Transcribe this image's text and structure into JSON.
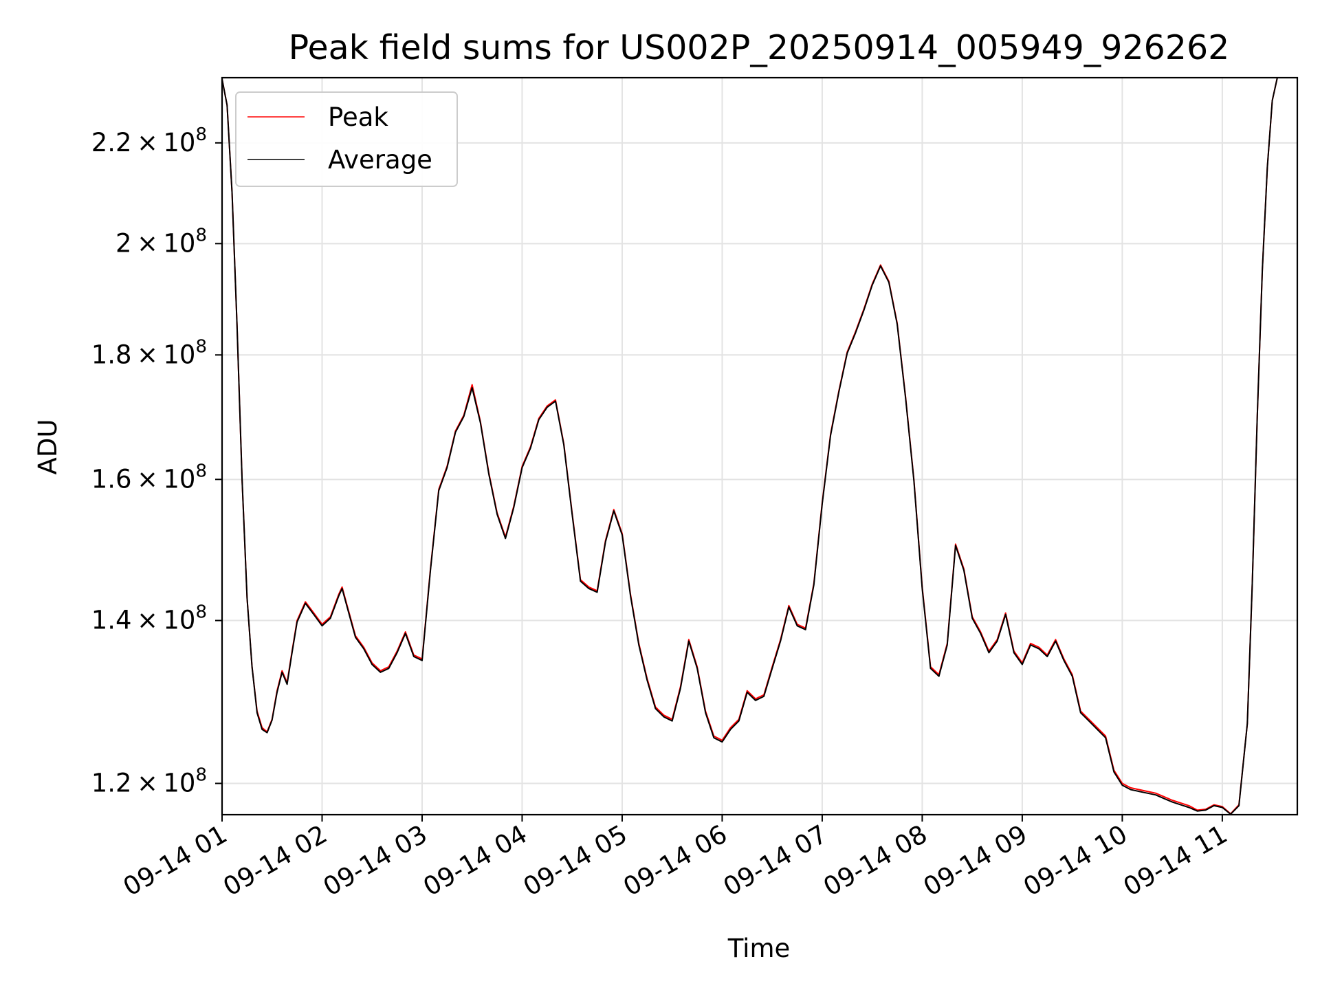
{
  "chart_data": {
    "type": "line",
    "title": "Peak field sums for US002P_20250914_005949_926262",
    "xlabel": "Time",
    "ylabel": "ADU",
    "y_scale": "log",
    "xlim": [
      "2025-09-14 01:00",
      "2025-09-14 11:45"
    ],
    "ylim": [
      116500000,
      234000000
    ],
    "grid": true,
    "legend_position": "upper-left",
    "x_ticks": [
      {
        "value": "2025-09-14 01:00",
        "label": "09-14 01"
      },
      {
        "value": "2025-09-14 02:00",
        "label": "09-14 02"
      },
      {
        "value": "2025-09-14 03:00",
        "label": "09-14 03"
      },
      {
        "value": "2025-09-14 04:00",
        "label": "09-14 04"
      },
      {
        "value": "2025-09-14 05:00",
        "label": "09-14 05"
      },
      {
        "value": "2025-09-14 06:00",
        "label": "09-14 06"
      },
      {
        "value": "2025-09-14 07:00",
        "label": "09-14 07"
      },
      {
        "value": "2025-09-14 08:00",
        "label": "09-14 08"
      },
      {
        "value": "2025-09-14 09:00",
        "label": "09-14 09"
      },
      {
        "value": "2025-09-14 10:00",
        "label": "09-14 10"
      },
      {
        "value": "2025-09-14 11:00",
        "label": "09-14 11"
      }
    ],
    "y_ticks": [
      {
        "value": 120000000,
        "mantissa": "1.2",
        "base": "10",
        "exponent": "8"
      },
      {
        "value": 140000000,
        "mantissa": "1.4",
        "base": "10",
        "exponent": "8"
      },
      {
        "value": 160000000,
        "mantissa": "1.6",
        "base": "10",
        "exponent": "8"
      },
      {
        "value": 180000000,
        "mantissa": "1.8",
        "base": "10",
        "exponent": "8"
      },
      {
        "value": 200000000,
        "mantissa": "2",
        "base": "10",
        "exponent": "8"
      },
      {
        "value": 220000000,
        "mantissa": "2.2",
        "base": "10",
        "exponent": "8"
      }
    ],
    "x": [
      "00:59:49",
      "01:03",
      "01:06",
      "01:09",
      "01:12",
      "01:15",
      "01:18",
      "01:21",
      "01:24",
      "01:27",
      "01:30",
      "01:33",
      "01:36",
      "01:39",
      "01:42",
      "01:45",
      "01:50",
      "01:55",
      "02:00",
      "02:05",
      "02:10",
      "02:12",
      "02:15",
      "02:20",
      "02:25",
      "02:30",
      "02:35",
      "02:40",
      "02:45",
      "02:50",
      "02:55",
      "03:00",
      "03:05",
      "03:10",
      "03:15",
      "03:20",
      "03:25",
      "03:30",
      "03:35",
      "03:40",
      "03:45",
      "03:50",
      "03:55",
      "04:00",
      "04:05",
      "04:10",
      "04:15",
      "04:20",
      "04:25",
      "04:30",
      "04:35",
      "04:40",
      "04:45",
      "04:50",
      "04:55",
      "05:00",
      "05:05",
      "05:10",
      "05:15",
      "05:20",
      "05:25",
      "05:30",
      "05:35",
      "05:40",
      "05:45",
      "05:50",
      "05:55",
      "06:00",
      "06:05",
      "06:10",
      "06:15",
      "06:20",
      "06:25",
      "06:30",
      "06:35",
      "06:40",
      "06:45",
      "06:50",
      "06:55",
      "07:00",
      "07:05",
      "07:10",
      "07:15",
      "07:20",
      "07:25",
      "07:30",
      "07:35",
      "07:40",
      "07:45",
      "07:50",
      "07:55",
      "08:00",
      "08:05",
      "08:10",
      "08:15",
      "08:20",
      "08:25",
      "08:30",
      "08:35",
      "08:40",
      "08:45",
      "08:50",
      "08:55",
      "09:00",
      "09:05",
      "09:10",
      "09:15",
      "09:20",
      "09:25",
      "09:30",
      "09:35",
      "09:40",
      "09:45",
      "09:50",
      "09:55",
      "10:00",
      "10:05",
      "10:10",
      "10:15",
      "10:20",
      "10:25",
      "10:30",
      "10:35",
      "10:40",
      "10:45",
      "10:50",
      "10:55",
      "11:00",
      "11:05",
      "11:10",
      "11:15",
      "11:18",
      "11:21",
      "11:24",
      "11:27",
      "11:30",
      "11:33",
      "11:36",
      "11:39",
      "11:42"
    ],
    "series": [
      {
        "name": "Peak",
        "color": "#ff0000",
        "values": [
          234000000,
          228000000,
          210000000,
          185000000,
          160000000,
          143000000,
          134000000,
          128500000,
          126500000,
          126000000,
          127500000,
          131000000,
          133500000,
          132000000,
          136000000,
          140000000,
          142500000,
          141000000,
          139500000,
          140500000,
          143500000,
          144500000,
          142000000,
          138000000,
          136500000,
          134500000,
          133500000,
          134000000,
          136000000,
          138500000,
          135500000,
          135000000,
          147000000,
          158500000,
          162000000,
          167500000,
          170000000,
          175000000,
          169000000,
          161000000,
          155000000,
          151500000,
          156000000,
          162000000,
          165000000,
          169500000,
          171500000,
          172500000,
          165500000,
          155000000,
          145500000,
          144500000,
          144000000,
          151000000,
          155500000,
          152000000,
          143500000,
          137000000,
          132500000,
          129000000,
          128000000,
          127500000,
          131500000,
          137500000,
          134000000,
          128500000,
          125500000,
          125000000,
          126500000,
          127500000,
          131000000,
          130000000,
          130500000,
          134000000,
          137500000,
          142000000,
          139500000,
          139000000,
          145000000,
          156500000,
          167000000,
          174000000,
          180500000,
          184000000,
          188000000,
          192500000,
          196000000,
          193000000,
          185500000,
          173000000,
          160000000,
          144500000,
          134000000,
          133000000,
          137000000,
          150500000,
          147000000,
          140500000,
          138500000,
          136000000,
          137500000,
          141000000,
          136000000,
          134500000,
          137000000,
          136500000,
          135500000,
          137500000,
          135000000,
          133000000,
          128500000,
          127500000,
          126500000,
          125500000,
          121500000,
          120000000,
          119500000,
          119300000,
          119100000,
          118900000,
          118500000,
          118100000,
          117800000,
          117500000,
          117000000,
          117100000,
          117600000,
          117400000,
          116600000,
          117600000,
          127000000,
          145000000,
          170000000,
          195000000,
          215000000,
          229000000,
          234000000,
          234000000,
          234000000,
          234000000
        ]
      },
      {
        "name": "Average",
        "color": "#000000",
        "values": [
          234000000,
          228000000,
          210000000,
          185000000,
          160000000,
          143000000,
          134000000,
          128300000,
          126300000,
          125900000,
          127400000,
          130800000,
          133300000,
          131800000,
          135800000,
          139800000,
          142300000,
          140800000,
          139300000,
          140300000,
          143300000,
          144300000,
          141800000,
          137800000,
          136300000,
          134300000,
          133300000,
          133800000,
          135800000,
          138300000,
          135300000,
          134800000,
          146800000,
          158300000,
          161800000,
          167300000,
          169800000,
          174500000,
          168800000,
          160800000,
          154800000,
          151300000,
          155800000,
          161800000,
          164800000,
          169300000,
          171300000,
          172300000,
          165300000,
          154800000,
          145300000,
          144300000,
          143800000,
          150800000,
          155300000,
          151800000,
          143300000,
          136800000,
          132300000,
          128800000,
          127800000,
          127300000,
          131300000,
          137300000,
          133800000,
          128300000,
          125300000,
          124800000,
          126300000,
          127300000,
          130800000,
          129800000,
          130300000,
          133800000,
          137300000,
          141800000,
          139300000,
          138800000,
          144800000,
          156300000,
          166800000,
          173800000,
          180300000,
          183800000,
          187800000,
          192300000,
          195800000,
          192800000,
          185300000,
          172800000,
          159800000,
          144300000,
          133800000,
          132800000,
          136800000,
          150300000,
          146800000,
          140300000,
          138300000,
          135800000,
          137300000,
          140800000,
          135800000,
          134300000,
          136800000,
          136300000,
          135300000,
          137300000,
          134800000,
          132800000,
          128300000,
          127300000,
          126300000,
          125300000,
          121300000,
          119800000,
          119300000,
          119100000,
          118900000,
          118700000,
          118300000,
          117900000,
          117600000,
          117300000,
          116900000,
          117000000,
          117500000,
          117300000,
          116550000,
          117500000,
          127000000,
          145000000,
          170000000,
          195000000,
          215000000,
          229000000,
          234000000,
          234000000,
          234000000,
          234000000
        ]
      }
    ]
  }
}
